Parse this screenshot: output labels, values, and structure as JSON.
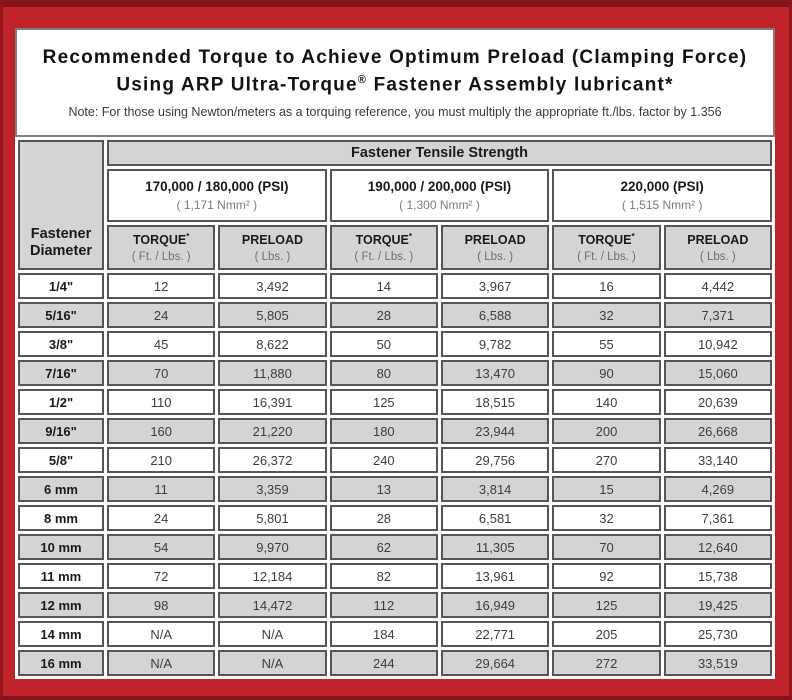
{
  "colors": {
    "frame_red": "#c0232a",
    "frame_dark_edge": "#84141a",
    "cell_shade_gray": "#d4d4d4",
    "cell_border_gray": "#555555",
    "panel_border_gray": "#7e7e7e"
  },
  "title": {
    "line1": "Recommended Torque to Achieve Optimum Preload (Clamping Force)",
    "line2_pre": "Using ARP Ultra-Torque",
    "line2_reg": "®",
    "line2_post": " Fastener Assembly lubricant*",
    "note": "Note: For those using Newton/meters as a torquing reference, you must multiply the appropriate ft./lbs. factor by 1.356"
  },
  "table": {
    "tensile_header": "Fastener Tensile Strength",
    "dia_line1": "Fastener",
    "dia_line2": "Diameter",
    "psi_groups": [
      {
        "psi": "170,000 / 180,000 (PSI)",
        "sub": "( 1,171 Nmm² )"
      },
      {
        "psi": "190,000 / 200,000 (PSI)",
        "sub": "( 1,300 Nmm² )"
      },
      {
        "psi": "220,000 (PSI)",
        "sub": "( 1,515 Nmm² )"
      }
    ],
    "col_headers": [
      {
        "title": "TORQUE",
        "sup": "*",
        "sub": "( Ft. / Lbs. )"
      },
      {
        "title": "PRELOAD",
        "sup": "",
        "sub": "( Lbs. )"
      },
      {
        "title": "TORQUE",
        "sup": "*",
        "sub": "( Ft. / Lbs. )"
      },
      {
        "title": "PRELOAD",
        "sup": "",
        "sub": "( Lbs. )"
      },
      {
        "title": "TORQUE",
        "sup": "*",
        "sub": "( Ft. / Lbs. )"
      },
      {
        "title": "PRELOAD",
        "sup": "",
        "sub": "( Lbs. )"
      }
    ],
    "rows": [
      {
        "dia": "1/4\"",
        "values": [
          "12",
          "3,492",
          "14",
          "3,967",
          "16",
          "4,442"
        ]
      },
      {
        "dia": "5/16\"",
        "values": [
          "24",
          "5,805",
          "28",
          "6,588",
          "32",
          "7,371"
        ]
      },
      {
        "dia": "3/8\"",
        "values": [
          "45",
          "8,622",
          "50",
          "9,782",
          "55",
          "10,942"
        ]
      },
      {
        "dia": "7/16\"",
        "values": [
          "70",
          "11,880",
          "80",
          "13,470",
          "90",
          "15,060"
        ]
      },
      {
        "dia": "1/2\"",
        "values": [
          "110",
          "16,391",
          "125",
          "18,515",
          "140",
          "20,639"
        ]
      },
      {
        "dia": "9/16\"",
        "values": [
          "160",
          "21,220",
          "180",
          "23,944",
          "200",
          "26,668"
        ]
      },
      {
        "dia": "5/8\"",
        "values": [
          "210",
          "26,372",
          "240",
          "29,756",
          "270",
          "33,140"
        ]
      },
      {
        "dia": "6 mm",
        "values": [
          "11",
          "3,359",
          "13",
          "3,814",
          "15",
          "4,269"
        ]
      },
      {
        "dia": "8 mm",
        "values": [
          "24",
          "5,801",
          "28",
          "6,581",
          "32",
          "7,361"
        ]
      },
      {
        "dia": "10 mm",
        "values": [
          "54",
          "9,970",
          "62",
          "11,305",
          "70",
          "12,640"
        ]
      },
      {
        "dia": "11 mm",
        "values": [
          "72",
          "12,184",
          "82",
          "13,961",
          "92",
          "15,738"
        ]
      },
      {
        "dia": "12 mm",
        "values": [
          "98",
          "14,472",
          "112",
          "16,949",
          "125",
          "19,425"
        ]
      },
      {
        "dia": "14 mm",
        "values": [
          "N/A",
          "N/A",
          "184",
          "22,771",
          "205",
          "25,730"
        ]
      },
      {
        "dia": "16 mm",
        "values": [
          "N/A",
          "N/A",
          "244",
          "29,664",
          "272",
          "33,519"
        ]
      }
    ]
  }
}
